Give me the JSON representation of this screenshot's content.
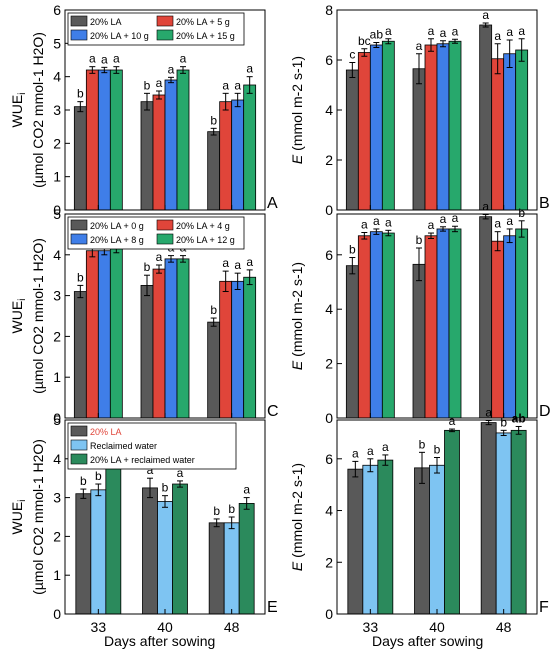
{
  "colors": {
    "gray": "#595959",
    "red": "#e0453a",
    "blue": "#3f7ee8",
    "green": "#27a86c",
    "light_blue": "#7ec4f2",
    "dark_green": "#2b8a5c"
  },
  "x_axis_title": "Days after sowing",
  "chart_data": [
    {
      "id": "A",
      "type": "bar",
      "panel_label": "A",
      "categories": [
        "33",
        "40",
        "48"
      ],
      "ylim": [
        0,
        6
      ],
      "yticks": [
        0,
        1,
        2,
        3,
        4,
        5,
        6
      ],
      "ylabel_main": "WUE",
      "ylabel_sub": "i",
      "ylabel_units": "(µmol CO2 mmol-1 H2O)",
      "legend": {
        "position": "top",
        "columns": 2
      },
      "show_x_ticklabels": false,
      "series": [
        {
          "name": "20% LA",
          "color": "gray",
          "values": [
            3.1,
            3.25,
            2.35
          ],
          "errors": [
            0.15,
            0.25,
            0.1
          ],
          "letters": [
            "b",
            "b",
            "b"
          ]
        },
        {
          "name": "20% LA + 5 g",
          "color": "red",
          "values": [
            4.2,
            3.45,
            3.25
          ],
          "errors": [
            0.1,
            0.12,
            0.25
          ],
          "letters": [
            "a",
            "a",
            "a"
          ]
        },
        {
          "name": "20% LA + 10 g",
          "color": "blue",
          "values": [
            4.2,
            3.9,
            3.3
          ],
          "errors": [
            0.08,
            0.08,
            0.2
          ],
          "letters": [
            "a",
            "a",
            "a"
          ]
        },
        {
          "name": "20% LA + 15 g",
          "color": "green",
          "values": [
            4.2,
            4.2,
            3.75
          ],
          "errors": [
            0.1,
            0.1,
            0.25
          ],
          "letters": [
            "a",
            "a",
            "a"
          ]
        }
      ]
    },
    {
      "id": "B",
      "type": "bar",
      "panel_label": "B",
      "categories": [
        "33",
        "40",
        "48"
      ],
      "ylim": [
        0,
        8
      ],
      "yticks": [
        0,
        2,
        4,
        6,
        8
      ],
      "ylabel_main": "E",
      "ylabel_units": "(mmol m-2 s-1)",
      "show_x_ticklabels": false,
      "series": [
        {
          "name": "20% LA",
          "color": "gray",
          "values": [
            5.6,
            5.65,
            7.4
          ],
          "errors": [
            0.3,
            0.6,
            0.08
          ],
          "letters": [
            "c",
            "a",
            "a"
          ]
        },
        {
          "name": "20% LA + 5 g",
          "color": "red",
          "values": [
            6.3,
            6.6,
            6.05
          ],
          "errors": [
            0.15,
            0.25,
            0.6
          ],
          "letters": [
            "bc",
            "a",
            "a"
          ]
        },
        {
          "name": "20% LA + 10 g",
          "color": "blue",
          "values": [
            6.6,
            6.65,
            6.25
          ],
          "errors": [
            0.1,
            0.12,
            0.55
          ],
          "letters": [
            "ab",
            "a",
            "a"
          ]
        },
        {
          "name": "20% LA + 15 g",
          "color": "green",
          "values": [
            6.75,
            6.75,
            6.4
          ],
          "errors": [
            0.1,
            0.08,
            0.45
          ],
          "letters": [
            "a",
            "a",
            "a"
          ]
        }
      ]
    },
    {
      "id": "C",
      "type": "bar",
      "panel_label": "C",
      "categories": [
        "33",
        "40",
        "48"
      ],
      "ylim": [
        0,
        5
      ],
      "yticks": [
        0,
        1,
        2,
        3,
        4,
        5
      ],
      "ylabel_main": "WUE",
      "ylabel_sub": "i",
      "ylabel_units": "(µmol CO2 mmol-1 H2O)",
      "legend": {
        "position": "top",
        "columns": 2
      },
      "show_x_ticklabels": false,
      "series": [
        {
          "name": "20% LA + 0 g",
          "color": "gray",
          "values": [
            3.1,
            3.25,
            2.35
          ],
          "errors": [
            0.15,
            0.25,
            0.1
          ],
          "letters": [
            "b",
            "b",
            "b"
          ]
        },
        {
          "name": "20% LA + 4 g",
          "color": "red",
          "values": [
            4.1,
            3.65,
            3.35
          ],
          "errors": [
            0.15,
            0.1,
            0.25
          ],
          "letters": [
            "a",
            "a",
            "a"
          ]
        },
        {
          "name": "20% LA + 8 g",
          "color": "blue",
          "values": [
            4.1,
            3.9,
            3.35
          ],
          "errors": [
            0.1,
            0.08,
            0.2
          ],
          "letters": [
            "a",
            "a",
            "a"
          ]
        },
        {
          "name": "20% LA + 12 g",
          "color": "green",
          "values": [
            4.15,
            3.9,
            3.45
          ],
          "errors": [
            0.1,
            0.08,
            0.18
          ],
          "letters": [
            "a",
            "a",
            "a"
          ]
        }
      ]
    },
    {
      "id": "D",
      "type": "bar",
      "panel_label": "D",
      "categories": [
        "33",
        "40",
        "48"
      ],
      "ylim": [
        0,
        7.5
      ],
      "yticks": [
        0,
        2,
        4,
        6
      ],
      "ylabel_main": "E",
      "ylabel_units": "(mmol m-2 s-1)",
      "show_x_ticklabels": false,
      "series": [
        {
          "name": "20% LA + 0 g",
          "color": "gray",
          "values": [
            5.6,
            5.65,
            7.4
          ],
          "errors": [
            0.3,
            0.6,
            0.08
          ],
          "letters": [
            "b",
            "b",
            "a"
          ]
        },
        {
          "name": "20% LA + 4 g",
          "color": "red",
          "values": [
            6.7,
            6.7,
            6.5
          ],
          "errors": [
            0.12,
            0.1,
            0.35
          ],
          "letters": [
            "a",
            "a",
            "a"
          ]
        },
        {
          "name": "20% LA + 8 g",
          "color": "blue",
          "values": [
            6.85,
            6.95,
            6.7
          ],
          "errors": [
            0.1,
            0.08,
            0.25
          ],
          "letters": [
            "a",
            "a",
            "a"
          ]
        },
        {
          "name": "20% LA + 12 g",
          "color": "green",
          "values": [
            6.8,
            6.95,
            6.95
          ],
          "errors": [
            0.1,
            0.1,
            0.3
          ],
          "letters": [
            "a",
            "a",
            "b"
          ]
        }
      ]
    },
    {
      "id": "E",
      "type": "bar",
      "panel_label": "E",
      "categories": [
        "33",
        "40",
        "48"
      ],
      "ylim": [
        0,
        5
      ],
      "yticks": [
        0,
        1,
        2,
        3,
        4,
        5
      ],
      "ylabel_main": "WUE",
      "ylabel_sub": "i",
      "ylabel_units": "(µmol CO2 mmol-1 H2O)",
      "legend": {
        "position": "top-left",
        "columns": 1
      },
      "show_x_ticklabels": true,
      "series": [
        {
          "name": "20% LA",
          "color": "gray",
          "values": [
            3.1,
            3.25,
            2.35
          ],
          "errors": [
            0.12,
            0.25,
            0.1
          ],
          "letters": [
            "b",
            "a",
            "b"
          ]
        },
        {
          "name": "Reclaimed water",
          "color": "light_blue",
          "values": [
            3.2,
            2.9,
            2.35
          ],
          "errors": [
            0.15,
            0.15,
            0.15
          ],
          "letters": [
            "b",
            "b",
            "b"
          ]
        },
        {
          "name": "20% LA + reclaimed water",
          "color": "dark_green",
          "values": [
            3.9,
            3.35,
            2.85
          ],
          "errors": [
            0.12,
            0.08,
            0.15
          ],
          "letters": [
            "a",
            "a",
            "a"
          ]
        }
      ]
    },
    {
      "id": "F",
      "type": "bar",
      "panel_label": "F",
      "categories": [
        "33",
        "40",
        "48"
      ],
      "ylim": [
        0,
        7.5
      ],
      "yticks": [
        0,
        2,
        4,
        6
      ],
      "ylabel_main": "E",
      "ylabel_units": "(mmol m-2 s-1)",
      "show_x_ticklabels": true,
      "series": [
        {
          "name": "20% LA",
          "color": "gray",
          "values": [
            5.6,
            5.65,
            7.4
          ],
          "errors": [
            0.3,
            0.6,
            0.08
          ],
          "letters": [
            "a",
            "b",
            "a"
          ]
        },
        {
          "name": "Reclaimed water",
          "color": "light_blue",
          "values": [
            5.75,
            5.75,
            7.0
          ],
          "errors": [
            0.25,
            0.3,
            0.1
          ],
          "letters": [
            "a",
            "b",
            "b"
          ]
        },
        {
          "name": "20% LA + reclaimed water",
          "color": "dark_green",
          "values": [
            5.95,
            7.1,
            7.1
          ],
          "errors": [
            0.2,
            0.05,
            0.15
          ],
          "letters": [
            "a",
            "a",
            "ab"
          ]
        }
      ]
    }
  ]
}
